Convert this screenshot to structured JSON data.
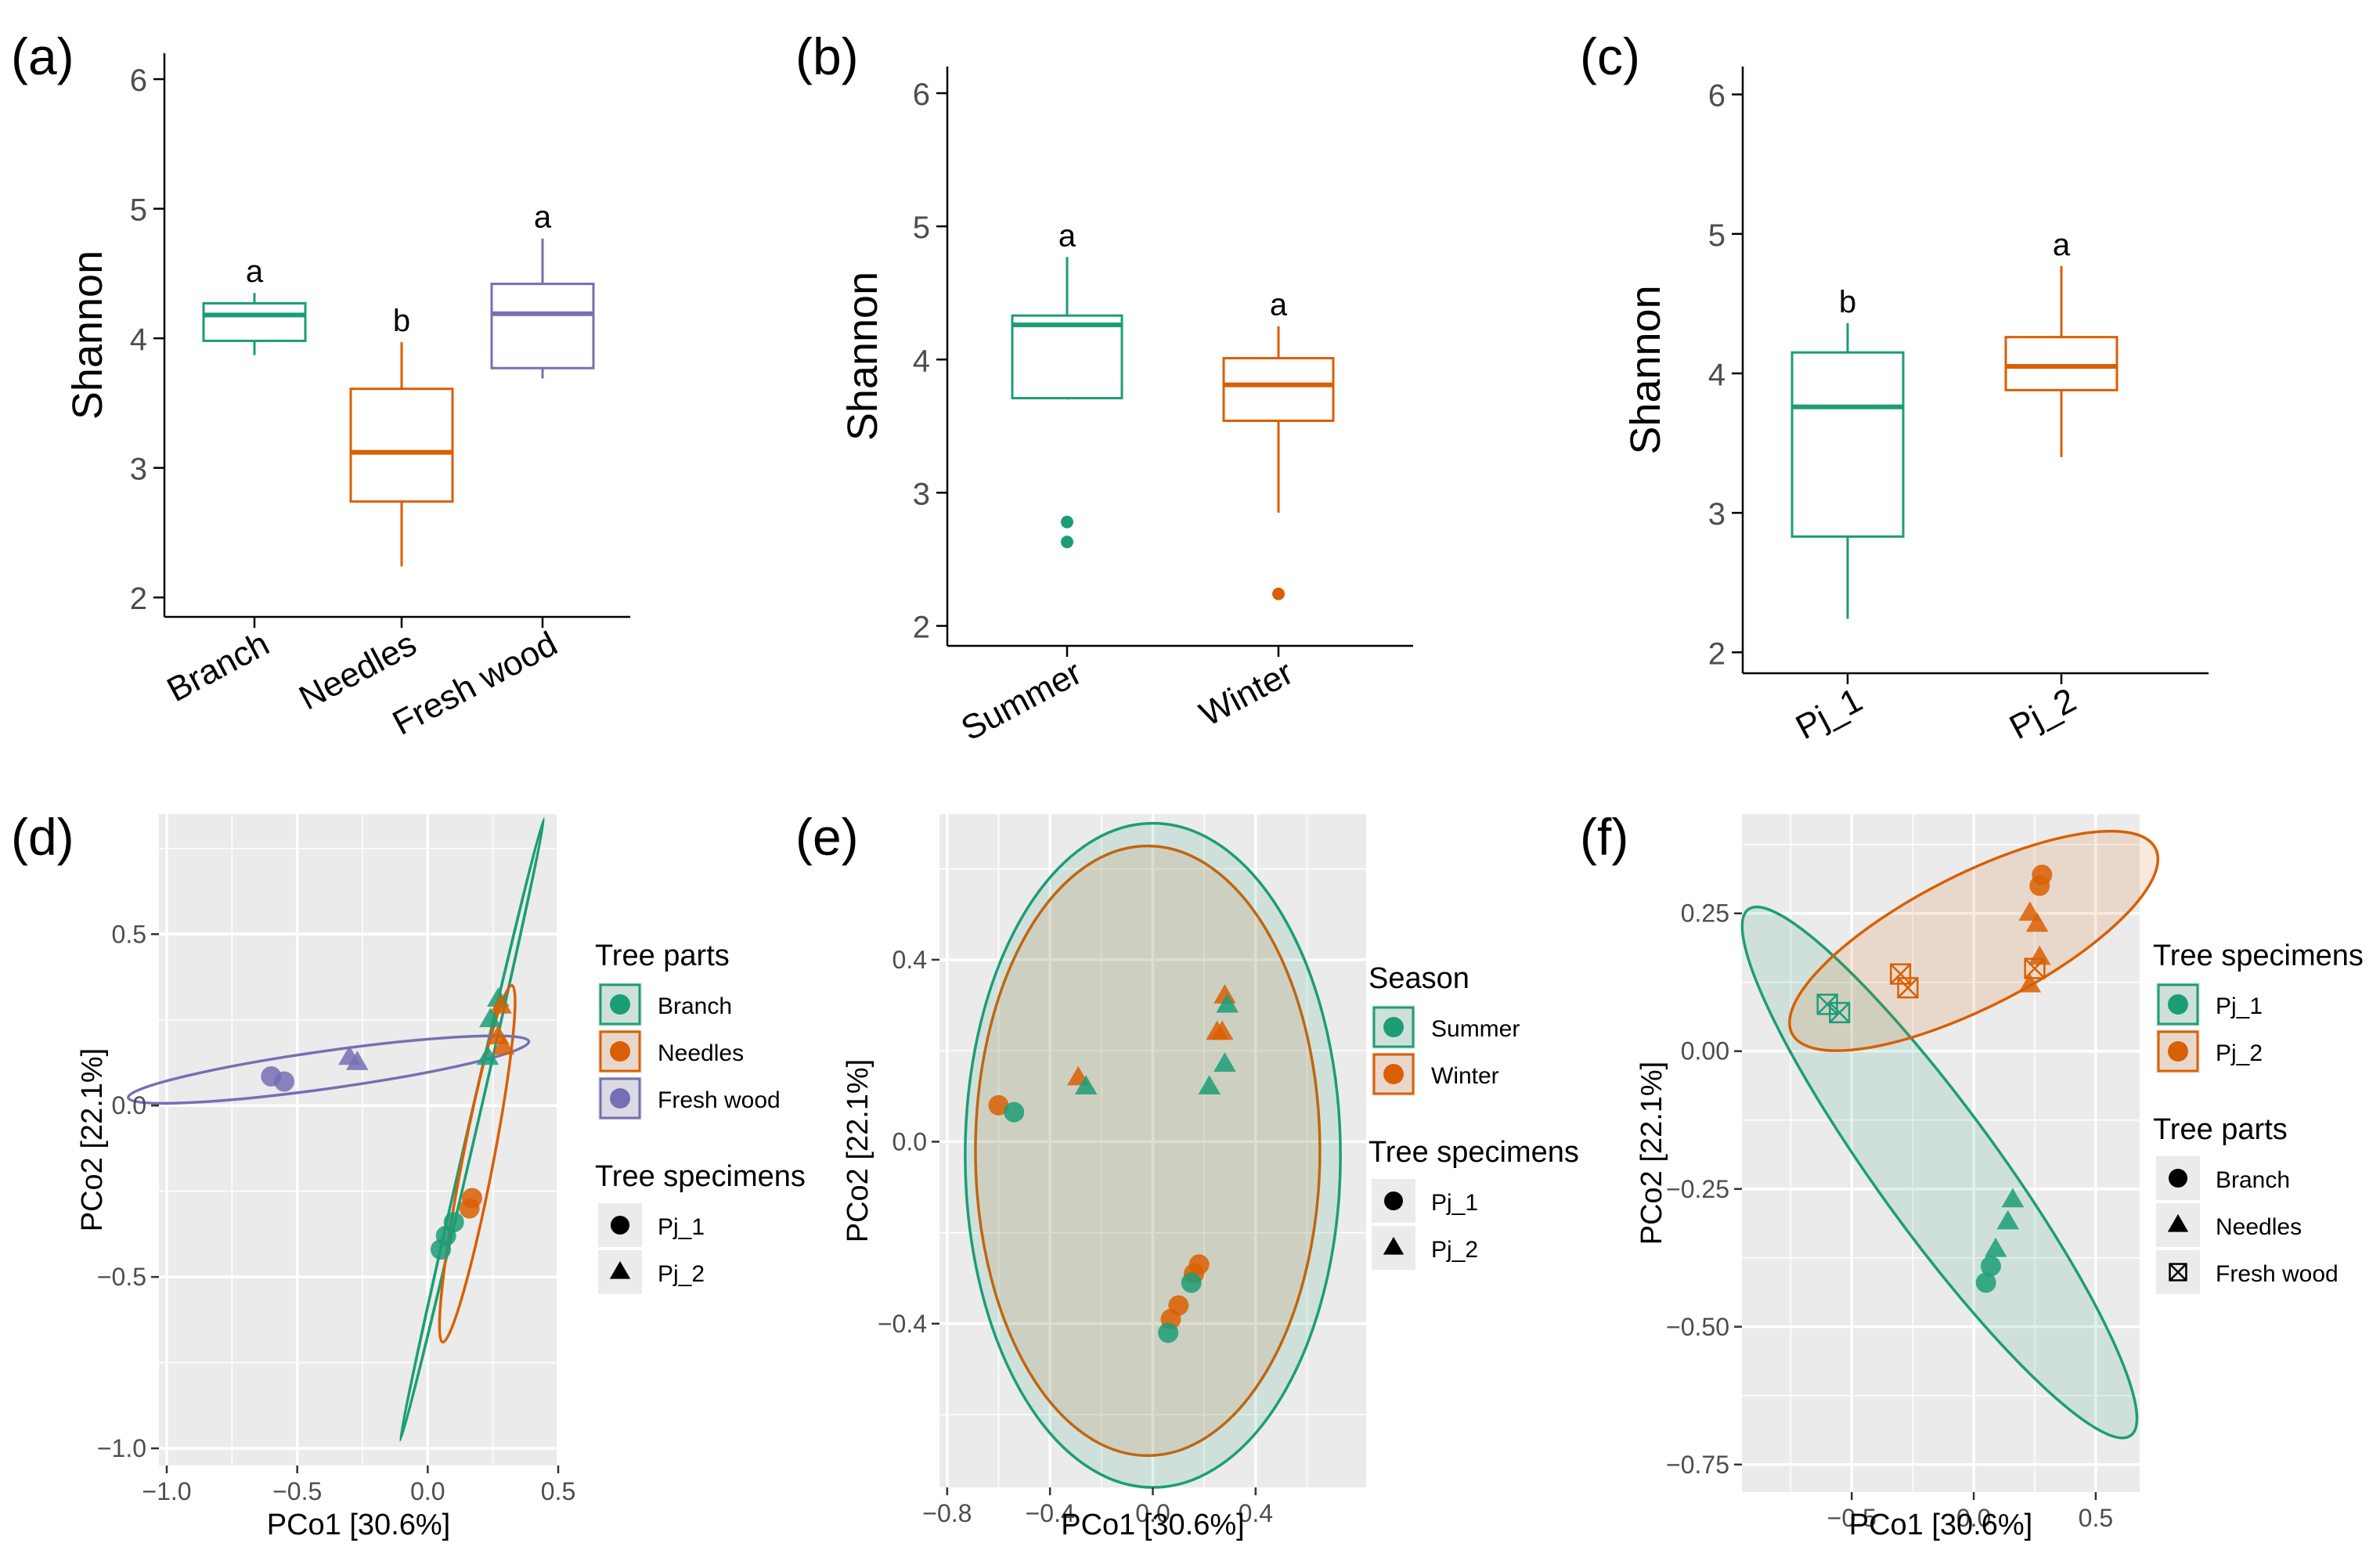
{
  "colors": {
    "green": "#1b9e77",
    "orange": "#d95f02",
    "purple": "#7570b3",
    "panel_bg": "#ebebeb",
    "tick_text": "#4d4d4d"
  },
  "chart_data": [
    {
      "panel": "(a)",
      "type": "box",
      "ylabel": "Shannon",
      "ylim": [
        1.85,
        6.2
      ],
      "yticks": [
        2,
        3,
        4,
        5,
        6
      ],
      "categories": [
        "Branch",
        "Needles",
        "Fresh  wood"
      ],
      "boxes": [
        {
          "category": "Branch",
          "color": "green",
          "lower_whisker": 3.87,
          "q1": 3.98,
          "median": 4.18,
          "q3": 4.27,
          "upper_whisker": 4.35,
          "outliers": [],
          "letter": "a"
        },
        {
          "category": "Needles",
          "color": "orange",
          "lower_whisker": 2.24,
          "q1": 2.74,
          "median": 3.12,
          "q3": 3.61,
          "upper_whisker": 3.97,
          "outliers": [],
          "letter": "b"
        },
        {
          "category": "Fresh  wood",
          "color": "purple",
          "lower_whisker": 3.69,
          "q1": 3.77,
          "median": 4.19,
          "q3": 4.42,
          "upper_whisker": 4.77,
          "outliers": [],
          "letter": "a"
        }
      ]
    },
    {
      "panel": "(b)",
      "type": "box",
      "ylabel": "Shannon",
      "ylim": [
        1.85,
        6.2
      ],
      "yticks": [
        2,
        3,
        4,
        5,
        6
      ],
      "categories": [
        "Summer",
        "Winter"
      ],
      "boxes": [
        {
          "category": "Summer",
          "color": "green",
          "lower_whisker": 3.7,
          "q1": 3.71,
          "median": 4.26,
          "q3": 4.33,
          "upper_whisker": 4.77,
          "outliers": [
            2.78,
            2.63
          ],
          "letter": "a"
        },
        {
          "category": "Winter",
          "color": "orange",
          "lower_whisker": 2.85,
          "q1": 3.54,
          "median": 3.81,
          "q3": 4.01,
          "upper_whisker": 4.25,
          "outliers": [
            2.24
          ],
          "letter": "a"
        }
      ]
    },
    {
      "panel": "(c)",
      "type": "box",
      "ylabel": "Shannon",
      "ylim": [
        1.85,
        6.2
      ],
      "yticks": [
        2,
        3,
        4,
        5,
        6
      ],
      "categories": [
        "Pj_1",
        "Pj_2"
      ],
      "boxes": [
        {
          "category": "Pj_1",
          "color": "green",
          "lower_whisker": 2.24,
          "q1": 2.83,
          "median": 3.76,
          "q3": 4.15,
          "upper_whisker": 4.36,
          "outliers": [],
          "letter": "b"
        },
        {
          "category": "Pj_2",
          "color": "orange",
          "lower_whisker": 3.4,
          "q1": 3.88,
          "median": 4.05,
          "q3": 4.26,
          "upper_whisker": 4.77,
          "outliers": [],
          "letter": "a"
        }
      ]
    },
    {
      "panel": "(d)",
      "type": "scatter",
      "xlabel": "PCo1 [30.6%]",
      "ylabel": "PCo2 [22.1%]",
      "xlim": [
        -1.03,
        0.5
      ],
      "ylim": [
        -1.05,
        0.85
      ],
      "xticks": [
        -1.0,
        -0.5,
        0.0,
        0.5
      ],
      "xtick_labels": [
        "−1.0",
        "−0.5",
        "0.0",
        "0.5"
      ],
      "yticks": [
        -1.0,
        -0.5,
        0.0,
        0.5
      ],
      "ytick_labels": [
        "−1.0",
        "−0.5",
        "0.0",
        "0.5"
      ],
      "ellipses": [
        {
          "group": "Branch",
          "color": "green",
          "cx": 0.17,
          "cy": -0.07,
          "rx": 0.93,
          "ry": 0.012,
          "angle": 77
        },
        {
          "group": "Needles",
          "color": "orange",
          "cx": 0.19,
          "cy": -0.17,
          "rx": 0.53,
          "ry": 0.045,
          "angle": 79
        },
        {
          "group": "Fresh  wood",
          "color": "purple",
          "cx": -0.38,
          "cy": 0.105,
          "rx": 0.59,
          "ry": 0.055,
          "angle": 8
        }
      ],
      "points": [
        {
          "x": -0.6,
          "y": 0.085,
          "color": "purple",
          "shape": "circle"
        },
        {
          "x": -0.55,
          "y": 0.07,
          "color": "purple",
          "shape": "circle"
        },
        {
          "x": -0.3,
          "y": 0.14,
          "color": "purple",
          "shape": "triangle"
        },
        {
          "x": -0.27,
          "y": 0.125,
          "color": "purple",
          "shape": "triangle"
        },
        {
          "x": 0.27,
          "y": 0.31,
          "color": "green",
          "shape": "triangle"
        },
        {
          "x": 0.28,
          "y": 0.29,
          "color": "orange",
          "shape": "triangle"
        },
        {
          "x": 0.24,
          "y": 0.25,
          "color": "green",
          "shape": "triangle"
        },
        {
          "x": 0.27,
          "y": 0.2,
          "color": "orange",
          "shape": "triangle"
        },
        {
          "x": 0.29,
          "y": 0.17,
          "color": "orange",
          "shape": "triangle"
        },
        {
          "x": 0.23,
          "y": 0.14,
          "color": "green",
          "shape": "triangle"
        },
        {
          "x": 0.17,
          "y": -0.27,
          "color": "orange",
          "shape": "circle"
        },
        {
          "x": 0.16,
          "y": -0.3,
          "color": "orange",
          "shape": "circle"
        },
        {
          "x": 0.1,
          "y": -0.34,
          "color": "green",
          "shape": "circle"
        },
        {
          "x": 0.07,
          "y": -0.38,
          "color": "green",
          "shape": "circle"
        },
        {
          "x": 0.05,
          "y": -0.42,
          "color": "green",
          "shape": "circle"
        }
      ],
      "legend": [
        {
          "title": "Tree parts",
          "type": "fill",
          "items": [
            {
              "label": "Branch",
              "color": "green",
              "shape": "circle"
            },
            {
              "label": "Needles",
              "color": "orange",
              "shape": "circle"
            },
            {
              "label": "Fresh  wood",
              "color": "purple",
              "shape": "circle"
            }
          ]
        },
        {
          "title": "Tree specimens",
          "type": "shape",
          "items": [
            {
              "label": "Pj_1",
              "shape": "circle"
            },
            {
              "label": "Pj_2",
              "shape": "triangle"
            }
          ]
        }
      ]
    },
    {
      "panel": "(e)",
      "type": "scatter",
      "xlabel": "PCo1 [30.6%]",
      "ylabel": "PCo2 [22.1%]",
      "xlim": [
        -0.83,
        0.83
      ],
      "ylim": [
        -0.76,
        0.72
      ],
      "xticks": [
        -0.8,
        -0.4,
        0.0,
        0.4
      ],
      "xtick_labels": [
        "−0.8",
        "−0.4",
        "0.0",
        "0.4"
      ],
      "yticks": [
        -0.4,
        0.0,
        0.4
      ],
      "ytick_labels": [
        "−0.4",
        "0.0",
        "0.4"
      ],
      "ellipses": [
        {
          "group": "Winter",
          "color": "orange",
          "cx": -0.02,
          "cy": -0.02,
          "rx": 0.67,
          "ry": 0.67,
          "angle": 0,
          "fill": true
        },
        {
          "group": "Summer",
          "color": "green",
          "cx": 0.0,
          "cy": -0.03,
          "rx": 0.73,
          "ry": 0.73,
          "angle": 0,
          "fill": true
        }
      ],
      "points": [
        {
          "x": -0.6,
          "y": 0.08,
          "color": "orange",
          "shape": "circle"
        },
        {
          "x": -0.54,
          "y": 0.065,
          "color": "green",
          "shape": "circle"
        },
        {
          "x": -0.29,
          "y": 0.14,
          "color": "orange",
          "shape": "triangle"
        },
        {
          "x": -0.26,
          "y": 0.12,
          "color": "green",
          "shape": "triangle"
        },
        {
          "x": 0.28,
          "y": 0.32,
          "color": "orange",
          "shape": "triangle"
        },
        {
          "x": 0.29,
          "y": 0.3,
          "color": "green",
          "shape": "triangle"
        },
        {
          "x": 0.25,
          "y": 0.24,
          "color": "orange",
          "shape": "triangle"
        },
        {
          "x": 0.27,
          "y": 0.24,
          "color": "orange",
          "shape": "triangle"
        },
        {
          "x": 0.28,
          "y": 0.17,
          "color": "green",
          "shape": "triangle"
        },
        {
          "x": 0.22,
          "y": 0.12,
          "color": "green",
          "shape": "triangle"
        },
        {
          "x": 0.18,
          "y": -0.27,
          "color": "orange",
          "shape": "circle"
        },
        {
          "x": 0.16,
          "y": -0.29,
          "color": "orange",
          "shape": "circle"
        },
        {
          "x": 0.15,
          "y": -0.31,
          "color": "green",
          "shape": "circle"
        },
        {
          "x": 0.1,
          "y": -0.36,
          "color": "orange",
          "shape": "circle"
        },
        {
          "x": 0.07,
          "y": -0.39,
          "color": "orange",
          "shape": "circle"
        },
        {
          "x": 0.06,
          "y": -0.42,
          "color": "green",
          "shape": "circle"
        }
      ],
      "legend": [
        {
          "title": "Season",
          "type": "fill",
          "items": [
            {
              "label": "Summer",
              "color": "green",
              "shape": "circle"
            },
            {
              "label": "Winter",
              "color": "orange",
              "shape": "circle"
            }
          ]
        },
        {
          "title": "Tree specimens",
          "type": "shape",
          "items": [
            {
              "label": "Pj_1",
              "shape": "circle"
            },
            {
              "label": "Pj_2",
              "shape": "triangle"
            }
          ]
        }
      ]
    },
    {
      "panel": "(f)",
      "type": "scatter",
      "xlabel": "PCo1 [30.6%]",
      "ylabel": "PCo2 [22.1%]",
      "xlim": [
        -0.95,
        0.68
      ],
      "ylim": [
        -0.8,
        0.43
      ],
      "xticks": [
        -0.5,
        0.0,
        0.5
      ],
      "xtick_labels": [
        "−0.5",
        "0.0",
        "0.5"
      ],
      "yticks": [
        -0.75,
        -0.5,
        -0.25,
        0.0,
        0.25
      ],
      "ytick_labels": [
        "−0.75",
        "−0.50",
        "−0.25",
        "0.00",
        "0.25"
      ],
      "ellipses": [
        {
          "group": "Pj_1",
          "color": "green",
          "cx": -0.14,
          "cy": -0.22,
          "rx": 0.59,
          "ry": 0.11,
          "angle": -54,
          "fill": true
        },
        {
          "group": "Pj_2",
          "color": "orange",
          "cx": 0.0,
          "cy": 0.2,
          "rx": 0.37,
          "ry": 0.12,
          "angle": 27,
          "fill": true
        }
      ],
      "points": [
        {
          "x": 0.28,
          "y": 0.32,
          "color": "orange",
          "shape": "circle"
        },
        {
          "x": 0.27,
          "y": 0.3,
          "color": "orange",
          "shape": "circle"
        },
        {
          "x": 0.23,
          "y": 0.25,
          "color": "orange",
          "shape": "triangle"
        },
        {
          "x": 0.26,
          "y": 0.23,
          "color": "orange",
          "shape": "triangle"
        },
        {
          "x": 0.27,
          "y": 0.17,
          "color": "orange",
          "shape": "triangle"
        },
        {
          "x": 0.23,
          "y": 0.12,
          "color": "orange",
          "shape": "triangle"
        },
        {
          "x": 0.25,
          "y": 0.15,
          "color": "orange",
          "shape": "box"
        },
        {
          "x": -0.3,
          "y": 0.14,
          "color": "orange",
          "shape": "box"
        },
        {
          "x": -0.27,
          "y": 0.115,
          "color": "orange",
          "shape": "box"
        },
        {
          "x": -0.6,
          "y": 0.085,
          "color": "green",
          "shape": "box"
        },
        {
          "x": -0.55,
          "y": 0.07,
          "color": "green",
          "shape": "box"
        },
        {
          "x": 0.16,
          "y": -0.27,
          "color": "green",
          "shape": "triangle"
        },
        {
          "x": 0.14,
          "y": -0.31,
          "color": "green",
          "shape": "triangle"
        },
        {
          "x": 0.09,
          "y": -0.36,
          "color": "green",
          "shape": "triangle"
        },
        {
          "x": 0.07,
          "y": -0.39,
          "color": "green",
          "shape": "circle"
        },
        {
          "x": 0.05,
          "y": -0.42,
          "color": "green",
          "shape": "circle"
        }
      ],
      "legend": [
        {
          "title": "Tree specimens",
          "type": "fill",
          "items": [
            {
              "label": "Pj_1",
              "color": "green",
              "shape": "circle"
            },
            {
              "label": "Pj_2",
              "color": "orange",
              "shape": "circle"
            }
          ]
        },
        {
          "title": "Tree parts",
          "type": "shape",
          "items": [
            {
              "label": "Branch",
              "shape": "circle"
            },
            {
              "label": "Needles",
              "shape": "triangle"
            },
            {
              "label": "Fresh  wood",
              "shape": "box"
            }
          ]
        }
      ]
    }
  ]
}
